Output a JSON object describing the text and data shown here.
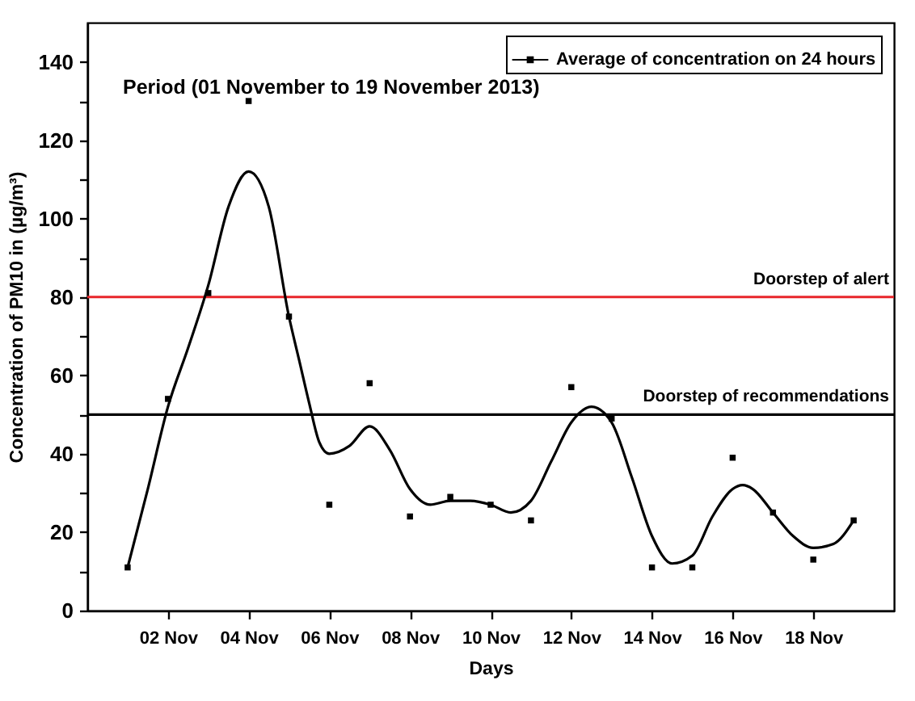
{
  "chart_data": {
    "type": "line",
    "xlabel": "Days",
    "ylabel": "Concentration of PM10 in (µg/m³)",
    "annotations": [
      "Period (01 November to 19 November 2013)"
    ],
    "x": [
      "2013-11-01",
      "2013-11-02",
      "2013-11-03",
      "2013-11-04",
      "2013-11-05",
      "2013-11-06",
      "2013-11-07",
      "2013-11-08",
      "2013-11-09",
      "2013-11-10",
      "2013-11-11",
      "2013-11-12",
      "2013-11-13",
      "2013-11-14",
      "2013-11-15",
      "2013-11-16",
      "2013-11-17",
      "2013-11-18",
      "2013-11-19"
    ],
    "series": [
      {
        "name": "Average of concentration on 24 hours",
        "type": "scatter",
        "color": "#000000",
        "marker": "square",
        "values": [
          11,
          54,
          81,
          130,
          75,
          27,
          58,
          24,
          29,
          27,
          23,
          57,
          49,
          11,
          11,
          39,
          25,
          13,
          23
        ]
      },
      {
        "color": "#000000",
        "marker": "none",
        "line_style": "solid",
        "x": [
          "2013-11-01T00:00",
          "2013-11-01T12:00",
          "2013-11-02T00:00",
          "2013-11-02T12:00",
          "2013-11-03T00:00",
          "2013-11-03T12:00",
          "2013-11-04T00:00",
          "2013-11-04T12:00",
          "2013-11-05T00:00",
          "2013-11-05T06:00",
          "2013-11-05T12:00",
          "2013-11-05T18:00",
          "2013-11-06T00:00",
          "2013-11-06T12:00",
          "2013-11-07T00:00",
          "2013-11-07T12:00",
          "2013-11-08T00:00",
          "2013-11-08T12:00",
          "2013-11-09T00:00",
          "2013-11-09T12:00",
          "2013-11-10T00:00",
          "2013-11-10T12:00",
          "2013-11-11T00:00",
          "2013-11-11T12:00",
          "2013-11-12T00:00",
          "2013-11-12T12:00",
          "2013-11-13T00:00",
          "2013-11-13T12:00",
          "2013-11-14T00:00",
          "2013-11-14T12:00",
          "2013-11-15T00:00",
          "2013-11-15T12:00",
          "2013-11-16T00:00",
          "2013-11-16T06:00",
          "2013-11-16T12:00",
          "2013-11-17T00:00",
          "2013-11-17T12:00",
          "2013-11-18T00:00",
          "2013-11-18T12:00",
          "2013-11-19T00:00"
        ],
        "values": [
          11,
          31,
          52,
          67,
          83,
          103,
          112,
          103,
          75,
          64,
          53,
          43,
          40,
          42,
          47,
          41,
          31,
          27,
          28,
          28,
          27,
          25,
          28,
          38,
          48,
          52,
          48,
          34,
          19,
          12,
          14,
          24,
          31,
          32,
          31,
          25,
          19,
          16,
          17,
          23
        ]
      }
    ],
    "xlim": [
      "2013-10-31",
      "2013-11-20"
    ],
    "xticks": [
      {
        "value": "2013-11-02",
        "label": "02 Nov"
      },
      {
        "value": "2013-11-04",
        "label": "04 Nov"
      },
      {
        "value": "2013-11-06",
        "label": "06 Nov"
      },
      {
        "value": "2013-11-08",
        "label": "08 Nov"
      },
      {
        "value": "2013-11-10",
        "label": "10 Nov"
      },
      {
        "value": "2013-11-12",
        "label": "12 Nov"
      },
      {
        "value": "2013-11-14",
        "label": "14 Nov"
      },
      {
        "value": "2013-11-16",
        "label": "16 Nov"
      },
      {
        "value": "2013-11-18",
        "label": "18 Nov"
      }
    ],
    "ylim": [
      0,
      150
    ],
    "yticks": [
      0,
      {
        "value": 10,
        "label": null
      },
      20,
      {
        "value": 30,
        "label": null
      },
      40,
      {
        "value": 50,
        "label": null
      },
      60,
      {
        "value": 70,
        "label": null
      },
      80,
      {
        "value": 90,
        "label": null
      },
      100,
      {
        "value": 110,
        "label": null
      },
      120,
      {
        "value": 130,
        "label": null
      },
      140
    ],
    "ref_lines": [
      {
        "axis": "y",
        "value": 80,
        "label": "Doorstep of alert",
        "color": "#e8262a"
      },
      {
        "axis": "y",
        "value": 50,
        "label": "Doorstep of recommendations",
        "color": "#000000"
      }
    ],
    "legend": "top right",
    "grid": false
  }
}
